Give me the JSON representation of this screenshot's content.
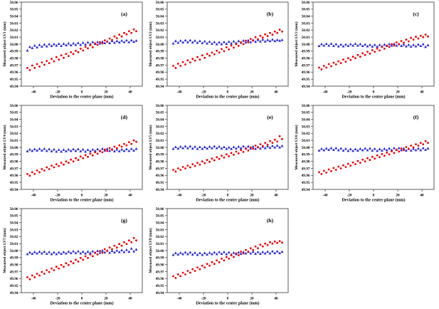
{
  "figure": {
    "background": "#ffffff",
    "xlabel": "Deviation to the center plane (mm)",
    "xlim": [
      -50,
      50
    ],
    "ylim": [
      49.94,
      50.06
    ],
    "x_ticks": [
      "-40",
      "-20",
      "0",
      "20",
      "40"
    ],
    "y_ticks": [
      "49.94",
      "49.95",
      "49.96",
      "49.97",
      "49.98",
      "49.99",
      "50.00",
      "50.01",
      "50.02",
      "50.03",
      "50.04",
      "50.05",
      "50.06"
    ],
    "series_styles": [
      {
        "key": "blue",
        "marker": "triangle",
        "color": "#2222cc"
      },
      {
        "key": "red",
        "marker": "circle",
        "color": "#e60000"
      }
    ],
    "x": [
      -45,
      -43,
      -41,
      -39,
      -37,
      -35,
      -33,
      -31,
      -29,
      -27,
      -25,
      -23,
      -21,
      -19,
      -17,
      -15,
      -13,
      -11,
      -9,
      -7,
      -5,
      -3,
      -1,
      1,
      3,
      5,
      7,
      9,
      11,
      13,
      15,
      17,
      19,
      21,
      23,
      25,
      27,
      29,
      31,
      33,
      35,
      37,
      39,
      41,
      43,
      45
    ]
  },
  "chart_data": [
    {
      "type": "scatter",
      "panel": "(a)",
      "ylabel": "Measured object LV1 (mm)",
      "xlabel": "Deviation to the center plane (mm)",
      "series": [
        {
          "style": "blue",
          "values": [
            49.991,
            49.996,
            49.9945,
            49.998,
            49.9955,
            49.999,
            49.9965,
            49.9995,
            49.997,
            50.0,
            49.9975,
            50.0,
            49.998,
            50.0005,
            49.9975,
            50.0005,
            49.9985,
            50.001,
            49.9985,
            50.001,
            49.999,
            50.0015,
            49.999,
            50.002,
            49.9995,
            50.0025,
            50.0,
            50.003,
            50.0005,
            50.003,
            50.001,
            50.0035,
            50.0015,
            50.004,
            50.0015,
            50.0045,
            50.002,
            50.0045,
            50.0025,
            50.005,
            50.003,
            50.0055,
            50.003,
            50.0055,
            50.0035,
            50.005
          ]
        },
        {
          "style": "red",
          "values": [
            49.966,
            49.963,
            49.9695,
            49.966,
            49.9715,
            49.968,
            49.974,
            49.9705,
            49.976,
            49.973,
            49.979,
            49.9755,
            49.9815,
            49.978,
            49.984,
            49.9805,
            49.986,
            49.983,
            49.9885,
            49.986,
            49.9905,
            49.9885,
            49.9935,
            49.991,
            49.996,
            49.994,
            49.9985,
            49.9955,
            50.001,
            49.999,
            50.003,
            50.001,
            50.0055,
            50.0035,
            50.008,
            50.006,
            50.011,
            50.0085,
            50.0135,
            50.011,
            50.016,
            50.014,
            50.0185,
            50.016,
            50.021,
            50.0185
          ]
        }
      ]
    },
    {
      "type": "scatter",
      "panel": "(b)",
      "ylabel": "Measured object LV2 (mm)",
      "xlabel": "Deviation to the center plane (mm)",
      "series": [
        {
          "style": "blue",
          "values": [
            50.001,
            50.0045,
            50.002,
            50.005,
            50.0025,
            50.0055,
            50.003,
            50.0055,
            50.0025,
            50.005,
            50.002,
            50.0045,
            50.0015,
            50.004,
            50.001,
            50.0035,
            50.0005,
            50.003,
            50.0,
            50.0025,
            50.0,
            50.003,
            50.0005,
            50.0035,
            50.001,
            50.004,
            50.0015,
            50.0045,
            50.002,
            50.005,
            50.0025,
            50.0055,
            50.003,
            50.006,
            50.0035,
            50.006,
            50.004,
            50.0065,
            50.004,
            50.006,
            50.0045,
            50.0065,
            50.0045,
            50.006,
            50.005,
            50.006
          ]
        },
        {
          "style": "red",
          "values": [
            49.969,
            49.966,
            49.972,
            49.969,
            49.9745,
            49.971,
            49.977,
            49.974,
            49.979,
            49.9765,
            49.9815,
            49.978,
            49.984,
            49.9805,
            49.986,
            49.9835,
            49.988,
            49.9855,
            49.9905,
            49.988,
            49.993,
            49.99,
            49.9955,
            49.9925,
            49.998,
            49.995,
            50.0,
            49.9975,
            50.0025,
            50.0,
            50.005,
            50.0025,
            50.0075,
            50.005,
            50.01,
            50.007,
            50.012,
            50.0095,
            50.014,
            50.0115,
            50.016,
            50.0135,
            50.018,
            50.016,
            50.0205,
            50.018
          ]
        }
      ]
    },
    {
      "type": "scatter",
      "panel": "(c)",
      "ylabel": "Measured object LV3 (mm)",
      "xlabel": "Deviation to the center plane (mm)",
      "series": [
        {
          "style": "blue",
          "values": [
            49.9975,
            50.0,
            49.998,
            50.0005,
            49.998,
            50.0005,
            49.9975,
            50.0,
            49.997,
            49.9995,
            49.997,
            49.9995,
            49.9975,
            50.0,
            49.998,
            50.0005,
            49.998,
            50.0,
            49.9975,
            49.9995,
            49.997,
            49.999,
            49.9965,
            49.999,
            49.9965,
            49.999,
            49.997,
            49.9995,
            49.9975,
            50.0,
            49.998,
            50.0005,
            49.998,
            50.0,
            49.9975,
            49.9995,
            49.997,
            49.999,
            49.9965,
            49.999,
            49.997,
            49.9995,
            49.9975,
            50.0,
            49.996,
            49.9985
          ]
        },
        {
          "style": "red",
          "values": [
            49.9665,
            49.964,
            49.969,
            49.9665,
            49.9715,
            49.9685,
            49.9735,
            49.971,
            49.9755,
            49.973,
            49.978,
            49.975,
            49.98,
            49.9775,
            49.982,
            49.98,
            49.9845,
            49.982,
            49.987,
            49.9845,
            49.989,
            49.9865,
            49.9915,
            49.989,
            49.9935,
            49.991,
            49.996,
            49.9935,
            49.998,
            49.996,
            50.0,
            49.998,
            50.0025,
            50.0,
            50.0045,
            50.002,
            50.0065,
            50.004,
            50.009,
            50.0065,
            50.0105,
            50.008,
            50.012,
            50.01,
            50.0135,
            50.011
          ]
        }
      ]
    },
    {
      "type": "scatter",
      "panel": "(d)",
      "ylabel": "Measured object LV4 (mm)",
      "xlabel": "Deviation to the center plane (mm)",
      "series": [
        {
          "style": "blue",
          "values": [
            49.9945,
            49.997,
            49.995,
            49.9975,
            49.9955,
            49.998,
            49.9955,
            49.998,
            49.995,
            49.9975,
            49.9945,
            49.997,
            49.994,
            49.9965,
            49.994,
            49.9965,
            49.9945,
            49.997,
            49.995,
            49.9975,
            49.995,
            49.9975,
            49.9945,
            49.997,
            49.994,
            49.9965,
            49.9945,
            49.997,
            49.995,
            49.9975,
            49.995,
            49.998,
            49.9955,
            49.998,
            49.995,
            49.9975,
            49.9945,
            49.997,
            49.9945,
            49.997,
            49.995,
            49.9975,
            49.995,
            49.998,
            49.9955,
            49.998
          ]
        },
        {
          "style": "red",
          "values": [
            49.962,
            49.9595,
            49.9645,
            49.962,
            49.967,
            49.9645,
            49.969,
            49.967,
            49.9715,
            49.969,
            49.974,
            49.9715,
            49.976,
            49.9735,
            49.978,
            49.9755,
            49.98,
            49.978,
            49.9825,
            49.98,
            49.9845,
            49.982,
            49.987,
            49.9845,
            49.989,
            49.9865,
            49.991,
            49.9885,
            49.993,
            49.991,
            49.995,
            49.993,
            49.997,
            49.995,
            49.999,
            49.9965,
            50.001,
            49.999,
            50.003,
            50.001,
            50.005,
            50.003,
            50.0075,
            50.005,
            50.01,
            50.008
          ]
        }
      ]
    },
    {
      "type": "scatter",
      "panel": "(e)",
      "ylabel": "Measured object LV5 (mm)",
      "xlabel": "Deviation to the center plane (mm)",
      "series": [
        {
          "style": "blue",
          "values": [
            49.998,
            50.0005,
            49.9985,
            50.001,
            49.999,
            50.0015,
            49.999,
            50.0015,
            49.9985,
            50.001,
            49.998,
            50.0005,
            49.998,
            50.0005,
            49.9985,
            50.001,
            49.999,
            50.0015,
            49.999,
            50.001,
            49.9985,
            50.0005,
            49.998,
            50.0,
            49.998,
            50.0005,
            49.9985,
            50.001,
            49.999,
            50.0015,
            49.999,
            50.0015,
            49.9985,
            50.001,
            49.998,
            50.0005,
            49.9985,
            50.001,
            49.999,
            50.0015,
            49.9995,
            50.002,
            50.0,
            50.0025,
            50.0,
            50.002
          ]
        },
        {
          "style": "red",
          "values": [
            49.968,
            49.9655,
            49.97,
            49.968,
            49.972,
            49.97,
            49.974,
            49.9715,
            49.976,
            49.9735,
            49.978,
            49.9755,
            49.98,
            49.9775,
            49.982,
            49.9795,
            49.984,
            49.9815,
            49.986,
            49.9835,
            49.988,
            49.9855,
            49.99,
            49.9875,
            49.992,
            49.9895,
            49.994,
            49.9915,
            49.996,
            49.9935,
            49.998,
            49.9955,
            50.0,
            49.998,
            50.0025,
            50.0,
            50.0045,
            50.002,
            50.0065,
            50.004,
            50.009,
            50.0065,
            50.011,
            50.0085,
            50.016,
            50.012
          ]
        }
      ]
    },
    {
      "type": "scatter",
      "panel": "(f)",
      "ylabel": "Measured object LV6 (mm)",
      "xlabel": "Deviation to the center plane (mm)",
      "series": [
        {
          "style": "blue",
          "values": [
            49.9955,
            49.998,
            49.996,
            49.9985,
            49.9965,
            49.999,
            49.9965,
            49.999,
            49.996,
            49.9985,
            49.9955,
            49.998,
            49.995,
            49.9975,
            49.995,
            49.9975,
            49.9955,
            49.998,
            49.996,
            49.9985,
            49.996,
            49.9985,
            49.9955,
            49.998,
            49.995,
            49.9975,
            49.9955,
            49.998,
            49.996,
            49.9985,
            49.996,
            49.999,
            49.9965,
            49.999,
            49.996,
            49.9985,
            49.9955,
            49.998,
            49.9955,
            49.998,
            49.996,
            49.9985,
            49.996,
            49.999,
            49.9965,
            49.9985
          ]
        },
        {
          "style": "red",
          "values": [
            49.9645,
            49.962,
            49.9665,
            49.964,
            49.9685,
            49.966,
            49.9705,
            49.968,
            49.9725,
            49.97,
            49.9745,
            49.972,
            49.9765,
            49.974,
            49.9785,
            49.976,
            49.9805,
            49.978,
            49.9825,
            49.98,
            49.9845,
            49.982,
            49.9865,
            49.984,
            49.9885,
            49.986,
            49.9905,
            49.988,
            49.9925,
            49.99,
            49.9945,
            49.992,
            49.9965,
            49.994,
            49.9985,
            49.996,
            50.0005,
            49.998,
            50.0025,
            50.0,
            50.0045,
            50.0025,
            50.0065,
            50.0045,
            50.009,
            50.0065
          ]
        }
      ]
    },
    {
      "type": "scatter",
      "panel": "(g)",
      "ylabel": "Measured object LV7 (mm)",
      "xlabel": "Deviation to the center plane (mm)",
      "series": [
        {
          "style": "blue",
          "values": [
            49.995,
            49.9975,
            49.9955,
            49.998,
            49.996,
            49.9985,
            49.996,
            49.9985,
            49.9955,
            49.998,
            49.995,
            49.9975,
            49.995,
            49.9975,
            49.9955,
            49.998,
            49.996,
            49.9985,
            49.9965,
            49.999,
            49.9965,
            49.999,
            49.996,
            49.9985,
            49.996,
            49.9985,
            49.9965,
            49.999,
            49.997,
            49.9995,
            49.997,
            50.0,
            49.9975,
            50.0,
            49.997,
            49.9995,
            49.9975,
            50.0,
            49.998,
            50.0005,
            49.998,
            50.001,
            49.9985,
            50.003,
            49.999,
            50.0015
          ]
        },
        {
          "style": "red",
          "values": [
            49.962,
            49.959,
            49.9645,
            49.962,
            49.967,
            49.9645,
            49.9695,
            49.967,
            49.972,
            49.9695,
            49.9745,
            49.972,
            49.977,
            49.9745,
            49.9795,
            49.977,
            49.982,
            49.9795,
            49.9845,
            49.982,
            49.987,
            49.9845,
            49.9895,
            49.987,
            49.992,
            49.9895,
            49.9945,
            49.992,
            49.997,
            49.9945,
            49.9995,
            49.997,
            50.002,
            49.9995,
            50.0045,
            50.002,
            50.007,
            50.0045,
            50.0095,
            50.007,
            50.012,
            50.0095,
            50.0145,
            50.012,
            50.018,
            50.0145
          ]
        }
      ]
    },
    {
      "type": "scatter",
      "panel": "(h)",
      "ylabel": "Measured object LV8 (mm)",
      "xlabel": "Deviation to the center plane (mm)",
      "series": [
        {
          "style": "blue",
          "values": [
            49.994,
            49.9965,
            49.9945,
            49.997,
            49.995,
            49.9975,
            49.995,
            49.9975,
            49.9945,
            49.997,
            49.994,
            49.9965,
            49.994,
            49.9965,
            49.9945,
            49.997,
            49.995,
            49.9975,
            49.995,
            49.998,
            49.9955,
            49.998,
            49.995,
            49.9975,
            49.9945,
            49.997,
            49.995,
            49.9975,
            49.9955,
            49.998,
            49.996,
            49.9985,
            49.996,
            49.9985,
            49.9955,
            49.998,
            49.9955,
            49.998,
            49.996,
            49.9985,
            49.996,
            49.999,
            49.9965,
            49.999,
            49.9965,
            49.9985
          ]
        },
        {
          "style": "red",
          "values": [
            49.9635,
            49.961,
            49.966,
            49.9635,
            49.9685,
            49.966,
            49.971,
            49.9685,
            49.9735,
            49.971,
            49.976,
            49.9735,
            49.9785,
            49.976,
            49.981,
            49.9785,
            49.9835,
            49.981,
            49.986,
            49.9835,
            49.9885,
            49.986,
            49.991,
            49.9885,
            49.9935,
            49.991,
            49.996,
            49.9935,
            49.9985,
            49.996,
            50.001,
            49.9985,
            50.0035,
            50.001,
            50.006,
            50.0035,
            50.0085,
            50.006,
            50.01,
            50.008,
            50.012,
            50.01,
            50.013,
            50.011,
            50.0135,
            50.0115
          ]
        }
      ]
    }
  ]
}
